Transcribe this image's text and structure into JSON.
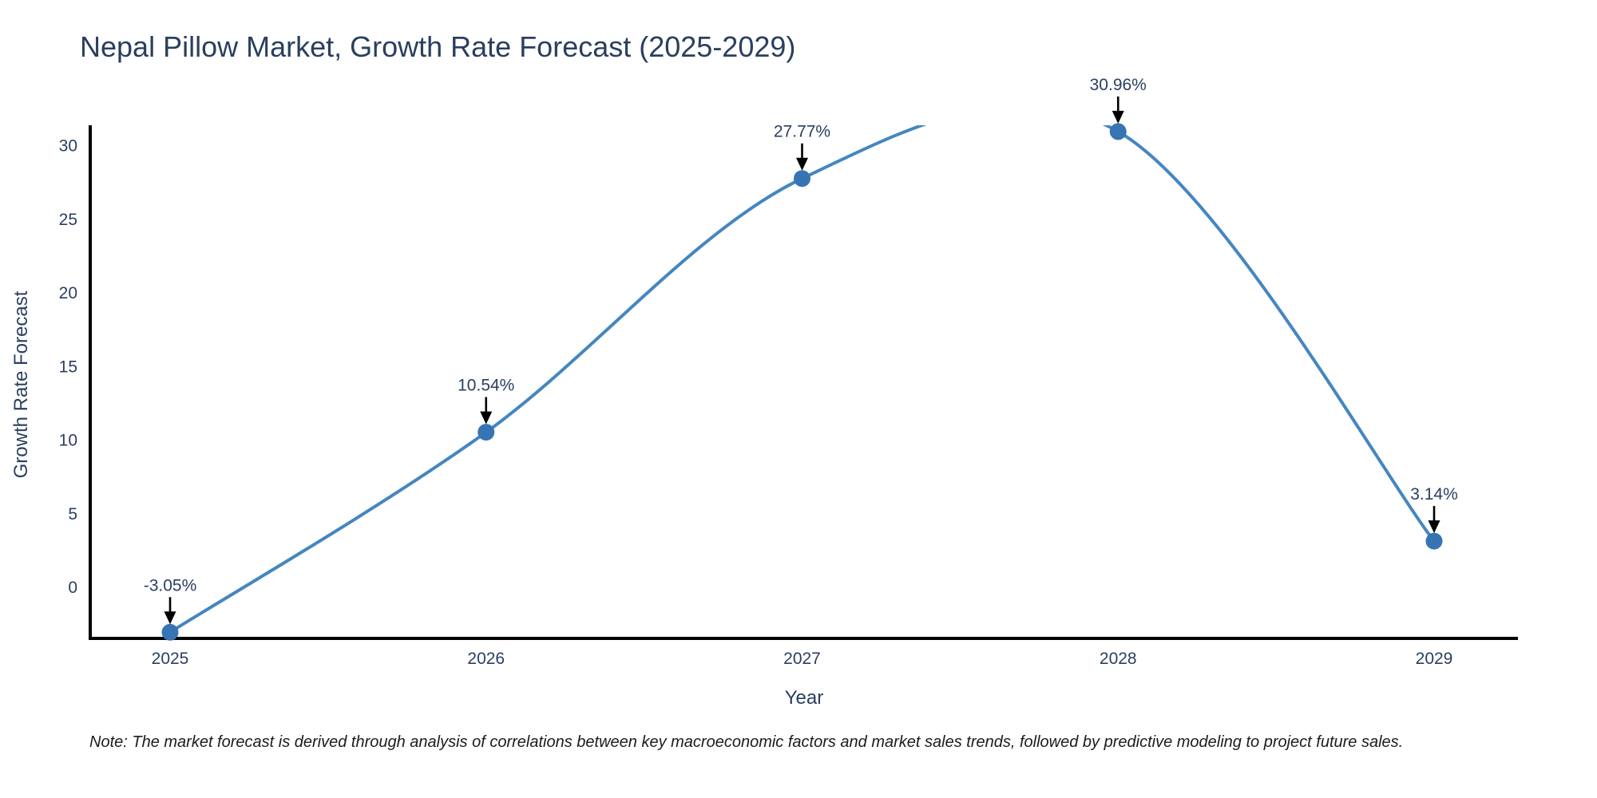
{
  "chart_data": {
    "type": "line",
    "title": "Nepal Pillow Market, Growth Rate Forecast (2025-2029)",
    "xlabel": "Year",
    "ylabel": "Growth Rate Forecast",
    "categories": [
      "2025",
      "2026",
      "2027",
      "2028",
      "2029"
    ],
    "series": [
      {
        "name": "Growth Rate Forecast",
        "values": [
          -3.05,
          10.54,
          27.77,
          30.96,
          3.14
        ],
        "point_labels": [
          "-3.05%",
          "10.54%",
          "27.77%",
          "30.96%",
          "3.14%"
        ]
      }
    ],
    "yticks": [
      0,
      5,
      10,
      15,
      20,
      25,
      30
    ],
    "ylim": [
      -3.5,
      31.3
    ],
    "line_shape": "spline",
    "grid": false,
    "legend_position": "none",
    "annotations_style": "value label with black down-arrow to each marker",
    "colors": {
      "line": "#4486c0",
      "marker": "#3674b4",
      "axis": "#000000",
      "text": "#2a3f5f",
      "arrow": "#000000"
    }
  },
  "note": "Note: The market forecast is derived through analysis of correlations between key macroeconomic factors and market sales trends, followed by predictive modeling to project future sales."
}
